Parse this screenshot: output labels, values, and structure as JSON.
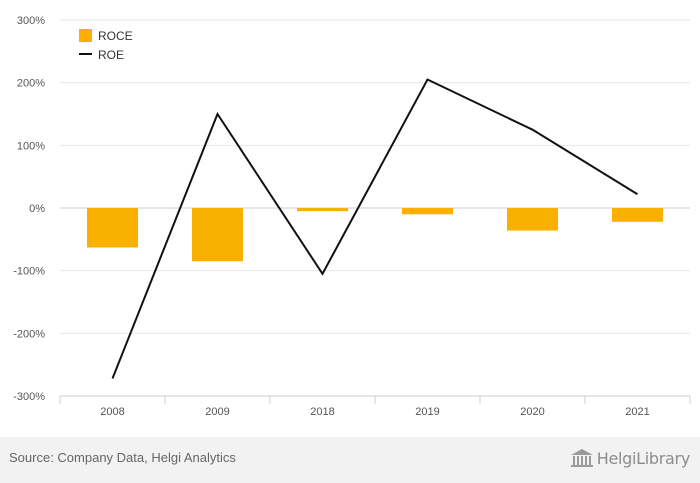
{
  "chart_data": {
    "type": "bar",
    "categories": [
      "2008",
      "2009",
      "2018",
      "2019",
      "2020",
      "2021"
    ],
    "series": [
      {
        "name": "ROCE",
        "type": "bar",
        "color": "#f9b000",
        "values": [
          -63,
          -85,
          -5,
          -10,
          -36,
          -22
        ]
      },
      {
        "name": "ROE",
        "type": "line",
        "color": "#111111",
        "values": [
          -272,
          150,
          -105,
          205,
          125,
          22
        ]
      }
    ],
    "y_ticks": [
      "300%",
      "200%",
      "100%",
      "0%",
      "-100%",
      "-200%",
      "-300%"
    ],
    "ylim": [
      -300,
      300
    ],
    "grid": true,
    "legend_position": "top-left"
  },
  "footer": {
    "source": "Source: Company Data, Helgi Analytics",
    "brand": "HelgiLibrary"
  },
  "icons": {
    "brand_logo": "library-building-icon"
  }
}
